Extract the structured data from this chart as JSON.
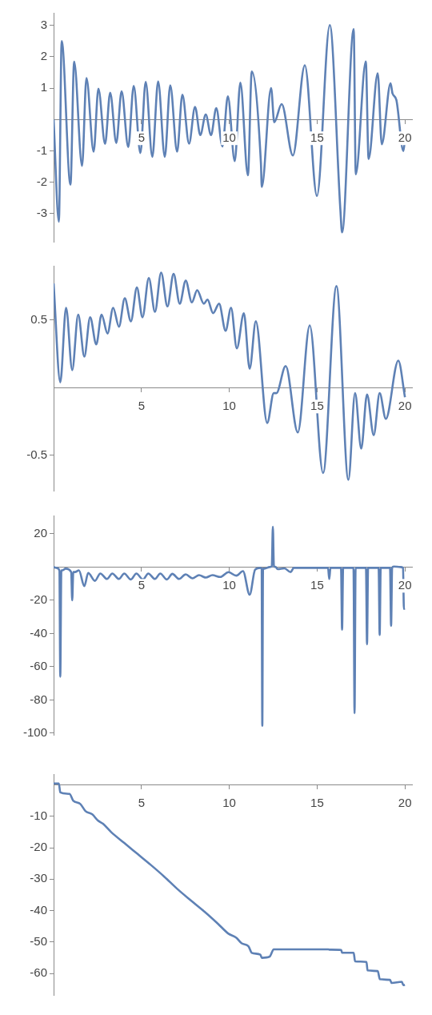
{
  "chart_data": [
    {
      "type": "line",
      "color": "#5e81b5",
      "marker": "none",
      "xlim": [
        0,
        20.4
      ],
      "ylim": [
        -3.9,
        3.4
      ],
      "xticks": [
        5,
        10,
        15,
        20
      ],
      "yticks": [
        -3,
        -2,
        -1,
        1,
        2,
        3
      ],
      "x": [
        0,
        0.3,
        0.46,
        0.96,
        1.17,
        1.62,
        1.87,
        2.28,
        2.55,
        2.93,
        3.22,
        3.57,
        3.87,
        4.25,
        4.56,
        4.94,
        5.24,
        5.62,
        5.95,
        6.33,
        6.64,
        7.03,
        7.33,
        7.71,
        8.05,
        8.35,
        8.66,
        8.96,
        9.26,
        9.61,
        9.92,
        10.31,
        10.63,
        11.06,
        11.28,
        11.8,
        11.85,
        12.38,
        12.56,
        12.98,
        13.62,
        14.3,
        14.99,
        15.72,
        16.32,
        16.42,
        17.08,
        17.2,
        17.77,
        17.93,
        18.45,
        18.68,
        19.18,
        19.29,
        19.51,
        19.91,
        20
      ],
      "values": [
        0,
        -3.26,
        2.5,
        -2.08,
        1.84,
        -1.48,
        1.32,
        -1.03,
        0.98,
        -0.78,
        0.85,
        -0.75,
        0.9,
        -0.88,
        1.07,
        -1.07,
        1.2,
        -1.19,
        1.21,
        -1.19,
        1.09,
        -1.03,
        0.79,
        -0.77,
        0.4,
        -0.5,
        0.16,
        -0.5,
        0.36,
        -0.86,
        0.74,
        -1.33,
        1.17,
        -1.78,
        1.53,
        -1.39,
        -2.15,
        1.0,
        -0.09,
        0.49,
        -1.15,
        1.73,
        -2.44,
        3.01,
        -2.85,
        -3.6,
        2.88,
        -1.75,
        1.85,
        -1.26,
        1.47,
        -0.79,
        1.15,
        0.83,
        0.62,
        -1.01,
        -0.62
      ]
    },
    {
      "type": "line",
      "color": "#5e81b5",
      "marker": "none",
      "xlim": [
        0,
        20.4
      ],
      "ylim": [
        -0.76,
        0.9
      ],
      "xticks": [
        5,
        10,
        15,
        20
      ],
      "yticks": [
        -0.5,
        0.5
      ],
      "x": [
        0,
        0.38,
        0.71,
        1.06,
        1.4,
        1.75,
        2.08,
        2.43,
        2.73,
        3.07,
        3.39,
        3.72,
        4.05,
        4.4,
        4.74,
        5.06,
        5.42,
        5.77,
        6.12,
        6.48,
        6.83,
        7.18,
        7.52,
        7.87,
        8.17,
        8.55,
        8.76,
        9.08,
        9.42,
        9.79,
        10.1,
        10.43,
        10.83,
        11.16,
        11.51,
        12.16,
        12.53,
        12.68,
        13.21,
        13.9,
        14.58,
        15.34,
        16.1,
        16.78,
        17.16,
        17.51,
        17.84,
        18.22,
        18.56,
        18.91,
        19.62,
        20
      ],
      "values": [
        0.77,
        0.04,
        0.59,
        0.13,
        0.54,
        0.23,
        0.52,
        0.32,
        0.54,
        0.4,
        0.59,
        0.45,
        0.66,
        0.49,
        0.74,
        0.52,
        0.81,
        0.56,
        0.85,
        0.6,
        0.84,
        0.62,
        0.79,
        0.63,
        0.72,
        0.62,
        0.65,
        0.55,
        0.62,
        0.42,
        0.59,
        0.29,
        0.55,
        0.14,
        0.49,
        -0.26,
        -0.04,
        -0.04,
        0.16,
        -0.33,
        0.46,
        -0.63,
        0.75,
        -0.68,
        -0.04,
        -0.45,
        -0.05,
        -0.35,
        -0.04,
        -0.23,
        0.2,
        -0.07
      ]
    },
    {
      "type": "line",
      "color": "#5e81b5",
      "marker": "none",
      "xlim": [
        0,
        20.4
      ],
      "ylim": [
        -101,
        31
      ],
      "xticks": [
        5,
        10,
        15,
        20
      ],
      "yticks": [
        -100,
        -80,
        -60,
        -40,
        -20,
        20
      ],
      "x": [
        0,
        0.15,
        0.33,
        0.38,
        0.44,
        0.5,
        0.68,
        1.0,
        1.06,
        1.12,
        1.22,
        1.44,
        1.75,
        1.97,
        2.35,
        2.66,
        3.04,
        3.34,
        3.72,
        4.02,
        4.4,
        4.71,
        5.09,
        5.39,
        5.77,
        6.07,
        6.45,
        6.76,
        7.14,
        7.52,
        7.9,
        8.28,
        8.66,
        9.04,
        9.49,
        9.95,
        10.4,
        10.78,
        11.16,
        11.47,
        11.77,
        11.84,
        11.88,
        11.92,
        12.0,
        12.3,
        12.42,
        12.48,
        12.54,
        12.64,
        12.76,
        13.14,
        13.49,
        13.67,
        14.65,
        15.62,
        15.69,
        15.76,
        16.36,
        16.42,
        16.48,
        17.07,
        17.13,
        17.19,
        17.78,
        17.84,
        17.9,
        18.5,
        18.56,
        18.62,
        19.15,
        19.21,
        19.27,
        19.36,
        19.74,
        19.89,
        19.94,
        20
      ],
      "values": [
        0,
        -0.5,
        -2,
        -66,
        -2,
        -2,
        -1,
        -3,
        -20,
        -3,
        -3,
        -2,
        -11.5,
        -3.6,
        -8.3,
        -3.9,
        -7.2,
        -3.9,
        -7.2,
        -3.9,
        -7.5,
        -3.9,
        -7.5,
        -3.9,
        -7.2,
        -3.9,
        -7.5,
        -4.1,
        -7.2,
        -4.4,
        -6.8,
        -4.9,
        -6.3,
        -4.9,
        -6,
        -3.1,
        -5.2,
        -2.5,
        -16.7,
        -1.6,
        -0.5,
        -1,
        -95.6,
        -1,
        -1,
        0,
        0.5,
        24.2,
        0.5,
        0,
        -1.3,
        -0.8,
        -3.1,
        -0.5,
        -0.5,
        -0.5,
        -7.2,
        -0.5,
        -0.5,
        -37.7,
        -0.5,
        -0.5,
        -88,
        -0.5,
        -0.5,
        -46.5,
        -0.5,
        -0.5,
        -40.9,
        -0.5,
        -0.5,
        -35.4,
        -0.5,
        0.3,
        0,
        -0.5,
        -25.2,
        -25
      ]
    },
    {
      "type": "line",
      "color": "#5e81b5",
      "marker": "none",
      "xlim": [
        0,
        20.4
      ],
      "ylim": [
        -66.8,
        3.4
      ],
      "xticks": [
        5,
        10,
        15,
        20
      ],
      "yticks": [
        -60,
        -50,
        -40,
        -30,
        -20,
        -10
      ],
      "x": [
        0,
        0.3,
        0.38,
        0.91,
        1.11,
        1.52,
        1.82,
        2.2,
        2.51,
        2.81,
        3.27,
        4.02,
        4.78,
        5.54,
        6.3,
        7.06,
        7.82,
        8.58,
        9.34,
        9.95,
        10.4,
        10.71,
        11.09,
        11.28,
        11.77,
        11.85,
        12.3,
        12.53,
        14.65,
        15.64,
        15.72,
        16.37,
        16.42,
        17.08,
        17.16,
        17.81,
        17.87,
        18.45,
        18.57,
        19.15,
        19.24,
        19.82,
        19.91,
        20
      ],
      "values": [
        0.4,
        0.4,
        -2.4,
        -2.9,
        -5.0,
        -6.1,
        -8.4,
        -9.4,
        -11.3,
        -12.4,
        -15,
        -18.5,
        -22,
        -25.5,
        -29.2,
        -33.2,
        -36.8,
        -40.3,
        -44.1,
        -47.3,
        -48.6,
        -50.4,
        -51.3,
        -53.4,
        -54,
        -55,
        -54.6,
        -52.3,
        -52.3,
        -52.3,
        -52.4,
        -52.5,
        -53.4,
        -53.4,
        -56.1,
        -56.3,
        -59,
        -59.2,
        -61.8,
        -62,
        -63,
        -62.6,
        -63.7,
        -63.6
      ]
    }
  ]
}
